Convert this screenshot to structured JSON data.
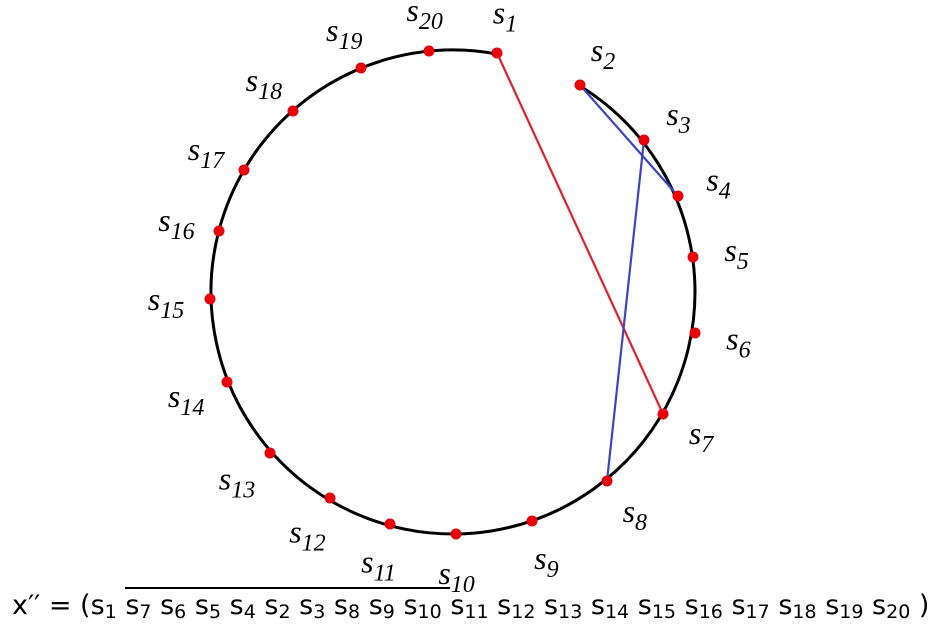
{
  "nodes": [
    {
      "name": "s",
      "index": "1"
    },
    {
      "name": "s",
      "index": "2"
    },
    {
      "name": "s",
      "index": "3"
    },
    {
      "name": "s",
      "index": "4"
    },
    {
      "name": "s",
      "index": "5"
    },
    {
      "name": "s",
      "index": "6"
    },
    {
      "name": "s",
      "index": "7"
    },
    {
      "name": "s",
      "index": "8"
    },
    {
      "name": "s",
      "index": "9"
    },
    {
      "name": "s",
      "index": "10"
    },
    {
      "name": "s",
      "index": "11"
    },
    {
      "name": "s",
      "index": "12"
    },
    {
      "name": "s",
      "index": "13"
    },
    {
      "name": "s",
      "index": "14"
    },
    {
      "name": "s",
      "index": "15"
    },
    {
      "name": "s",
      "index": "16"
    },
    {
      "name": "s",
      "index": "17"
    },
    {
      "name": "s",
      "index": "18"
    },
    {
      "name": "s",
      "index": "19"
    },
    {
      "name": "s",
      "index": "20"
    }
  ],
  "formula": {
    "lhs": "x′′ = (",
    "before": [
      {
        "name": "s",
        "index": "1"
      }
    ],
    "overlined": [
      {
        "name": "s",
        "index": "7"
      },
      {
        "name": "s",
        "index": "6"
      },
      {
        "name": "s",
        "index": "5"
      },
      {
        "name": "s",
        "index": "4"
      },
      {
        "name": "s",
        "index": "2"
      },
      {
        "name": "s",
        "index": "3"
      },
      {
        "name": "s",
        "index": "8"
      },
      {
        "name": "s",
        "index": "9"
      },
      {
        "name": "s",
        "index": "10"
      }
    ],
    "after": [
      {
        "name": "s",
        "index": "11"
      },
      {
        "name": "s",
        "index": "12"
      },
      {
        "name": "s",
        "index": "13"
      },
      {
        "name": "s",
        "index": "14"
      },
      {
        "name": "s",
        "index": "15"
      },
      {
        "name": "s",
        "index": "16"
      },
      {
        "name": "s",
        "index": "17"
      },
      {
        "name": "s",
        "index": "18"
      },
      {
        "name": "s",
        "index": "19"
      },
      {
        "name": "s",
        "index": "20"
      }
    ],
    "close": ")"
  }
}
